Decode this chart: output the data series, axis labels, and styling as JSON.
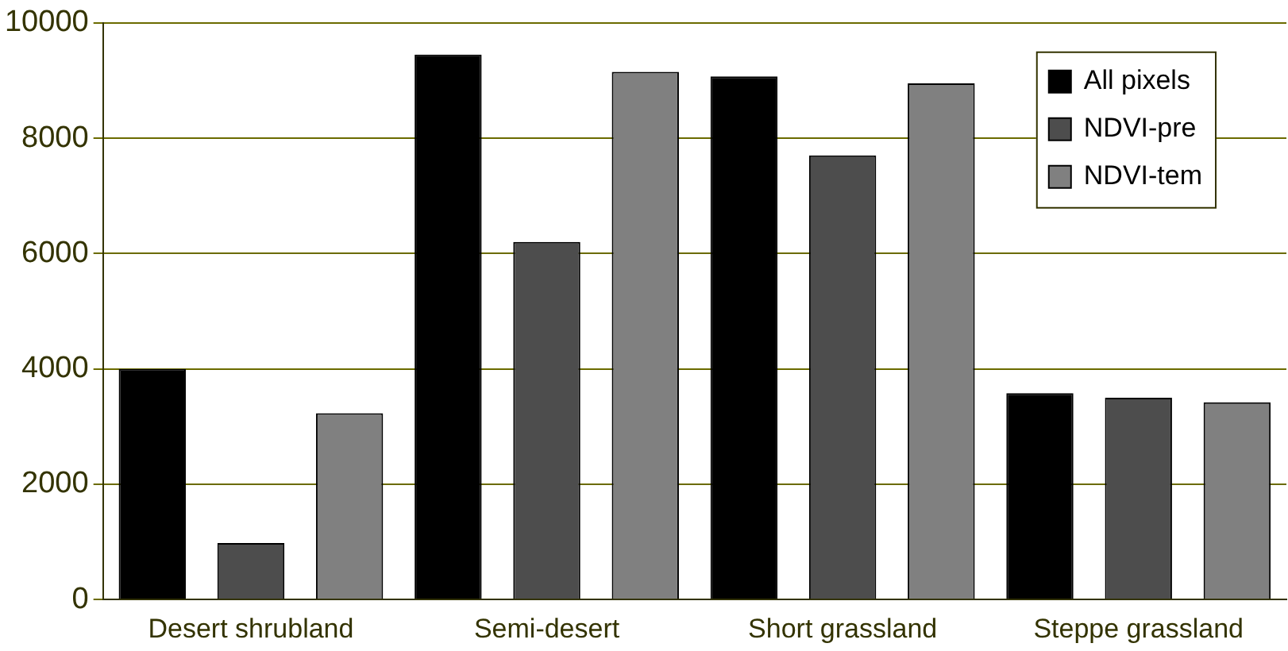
{
  "chart_data": {
    "type": "bar",
    "categories": [
      "Desert shrubland",
      "Semi-desert",
      "Short grassland",
      "Steppe grassland"
    ],
    "series": [
      {
        "name": "All pixels",
        "color": "#000000",
        "values": [
          4000,
          9450,
          9070,
          3580
        ]
      },
      {
        "name": "NDVI-pre",
        "color": "#4d4d4d",
        "values": [
          980,
          6200,
          7700,
          3500
        ]
      },
      {
        "name": "NDVI-tem",
        "color": "#808080",
        "values": [
          3230,
          9150,
          8950,
          3420
        ]
      }
    ],
    "ylim": [
      0,
      10000
    ],
    "yticks": [
      0,
      2000,
      4000,
      6000,
      8000,
      10000
    ],
    "grid": "y",
    "legend": "top right"
  }
}
